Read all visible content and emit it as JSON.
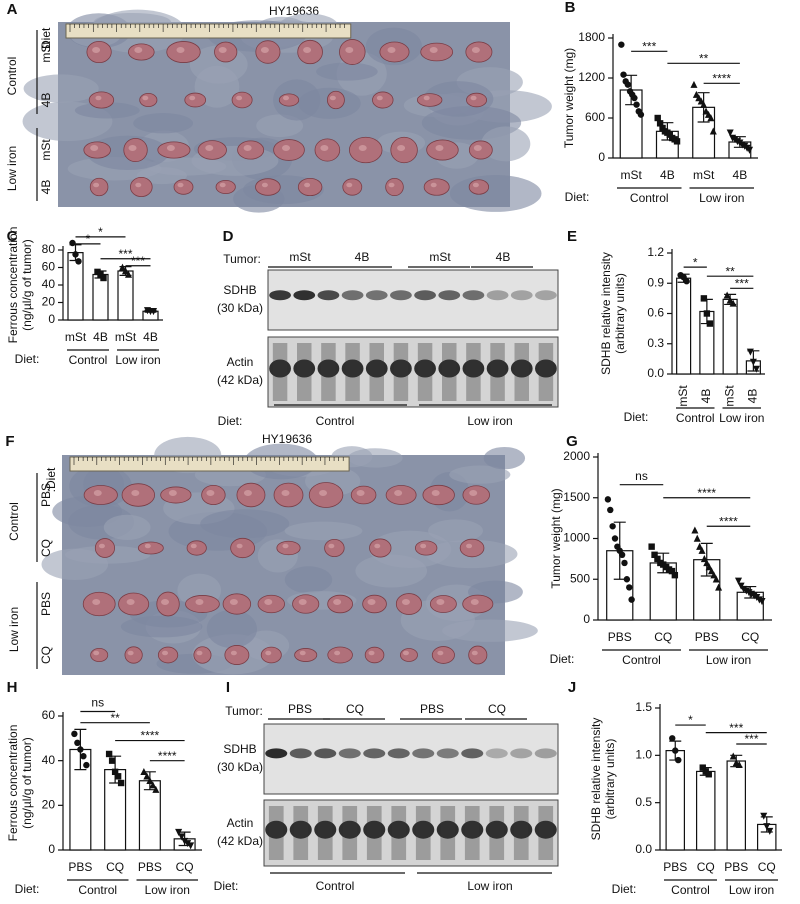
{
  "chart_data": [
    {
      "type": "bar",
      "panel": "B",
      "ylabel": [
        "Tumor weight (mg)"
      ],
      "categories": [
        "mSt",
        "4B",
        "mSt",
        "4B"
      ],
      "values": [
        1020,
        400,
        760,
        240
      ],
      "errors": [
        220,
        130,
        220,
        80
      ],
      "points": [
        [
          1700,
          1250,
          1150,
          1100,
          1000,
          950,
          900,
          800,
          700,
          650
        ],
        [
          600,
          520,
          450,
          400,
          380,
          350,
          300,
          280,
          250
        ],
        [
          1100,
          950,
          900,
          850,
          800,
          700,
          650,
          600,
          400
        ],
        [
          380,
          300,
          280,
          250,
          230,
          200,
          180,
          150,
          120
        ]
      ],
      "markers": [
        "circle",
        "square",
        "triangle",
        "triangle-down"
      ],
      "color": "#ffffff",
      "ylim": [
        0,
        1800
      ],
      "yticks": [
        0,
        600,
        1200,
        1800
      ],
      "rotate_labels": false,
      "diet_label": "Diet:",
      "groups": [
        "Control",
        "Low iron"
      ],
      "annotations": [
        {
          "label": "***",
          "from": 0,
          "to": 1,
          "y": 1600
        },
        {
          "label": "**",
          "from": 1,
          "to": 3,
          "y": 1420
        },
        {
          "label": "****",
          "from": 2,
          "to": 3,
          "y": 1120
        }
      ]
    },
    {
      "type": "bar",
      "panel": "C",
      "ylabel": [
        "Ferrous concentration",
        "(ng/µl/g of tumor)"
      ],
      "categories": [
        "mSt",
        "4B",
        "mSt",
        "4B"
      ],
      "values": [
        77,
        52,
        56,
        10
      ],
      "errors": [
        9,
        4,
        5,
        1
      ],
      "points": [
        [
          88,
          75,
          67
        ],
        [
          55,
          52,
          48
        ],
        [
          60,
          56,
          52
        ],
        [
          11,
          10,
          10
        ]
      ],
      "markers": [
        "circle",
        "square",
        "triangle",
        "triangle-down"
      ],
      "color": "#ffffff",
      "ylim": [
        0,
        80
      ],
      "yticks": [
        0,
        20,
        40,
        60,
        80
      ],
      "rotate_labels": false,
      "diet_label": "Diet:",
      "groups": [
        "Control",
        "Low iron"
      ],
      "annotations": [
        {
          "label": "*",
          "from": 0,
          "to": 2,
          "y": 95
        },
        {
          "label": "*",
          "from": 0,
          "to": 1,
          "y": 87
        },
        {
          "label": "***",
          "from": 1,
          "to": 3,
          "y": 70
        },
        {
          "label": "***",
          "from": 2,
          "to": 3,
          "y": 62
        }
      ]
    },
    {
      "type": "bar",
      "panel": "E",
      "ylabel": [
        "SDHB relative intensity",
        "(arbitrary units)"
      ],
      "categories": [
        "mSt",
        "4B",
        "mSt",
        "4B"
      ],
      "values": [
        0.95,
        0.62,
        0.74,
        0.13
      ],
      "errors": [
        0.04,
        0.12,
        0.05,
        0.1
      ],
      "points": [
        [
          0.98,
          0.96,
          0.92
        ],
        [
          0.75,
          0.6,
          0.5
        ],
        [
          0.78,
          0.73,
          0.7
        ],
        [
          0.22,
          0.12,
          0.05
        ]
      ],
      "markers": [
        "circle",
        "square",
        "triangle",
        "triangle-down"
      ],
      "color": "#ffffff",
      "ylim": [
        0,
        1.2
      ],
      "yticks": [
        {
          "value": 0,
          "label": "0.0"
        },
        0.3,
        0.6,
        0.9,
        1.2
      ],
      "rotate_labels": true,
      "diet_label": "Diet:",
      "groups": [
        "Control",
        "Low iron"
      ],
      "annotations": [
        {
          "label": "*",
          "from": 0,
          "to": 1,
          "y": 1.06
        },
        {
          "label": "**",
          "from": 1,
          "to": 3,
          "y": 0.97
        },
        {
          "label": "***",
          "from": 2,
          "to": 3,
          "y": 0.85
        }
      ]
    },
    {
      "type": "bar",
      "panel": "G",
      "ylabel": [
        "Tumor weight (mg)"
      ],
      "categories": [
        "PBS",
        "CQ",
        "PBS",
        "CQ"
      ],
      "values": [
        850,
        700,
        740,
        340
      ],
      "errors": [
        350,
        120,
        200,
        70
      ],
      "points": [
        [
          1480,
          1350,
          1150,
          1000,
          900,
          850,
          800,
          700,
          500,
          400,
          250
        ],
        [
          900,
          800,
          750,
          700,
          680,
          650,
          620,
          600,
          550
        ],
        [
          1100,
          1000,
          900,
          850,
          750,
          700,
          650,
          600,
          550,
          500,
          400
        ],
        [
          480,
          420,
          380,
          360,
          340,
          320,
          300,
          280,
          250,
          230
        ]
      ],
      "markers": [
        "circle",
        "square",
        "triangle",
        "triangle-down"
      ],
      "color": "#ffffff",
      "ylim": [
        0,
        2000
      ],
      "yticks": [
        0,
        500,
        1000,
        1500,
        2000
      ],
      "rotate_labels": false,
      "diet_label": "Diet:",
      "groups": [
        "Control",
        "Low iron"
      ],
      "annotations": [
        {
          "label": "ns",
          "from": 0,
          "to": 1,
          "y": 1660
        },
        {
          "label": "****",
          "from": 1,
          "to": 3,
          "y": 1500
        },
        {
          "label": "****",
          "from": 2,
          "to": 3,
          "y": 1150
        }
      ]
    },
    {
      "type": "bar",
      "panel": "H",
      "ylabel": [
        "Ferrous concentration",
        "(ng/µl/g of tumor)"
      ],
      "categories": [
        "PBS",
        "CQ",
        "PBS",
        "CQ"
      ],
      "values": [
        45,
        36,
        31,
        5
      ],
      "errors": [
        9,
        6,
        4,
        3
      ],
      "points": [
        [
          52,
          48,
          45,
          42,
          38
        ],
        [
          43,
          40,
          35,
          33,
          30
        ],
        [
          35,
          33,
          31,
          29,
          27
        ],
        [
          8,
          6,
          4,
          3,
          2
        ]
      ],
      "markers": [
        "circle",
        "square",
        "triangle",
        "triangle-down"
      ],
      "color": "#ffffff",
      "ylim": [
        0,
        60
      ],
      "yticks": [
        0,
        20,
        40,
        60
      ],
      "rotate_labels": false,
      "diet_label": "Diet:",
      "groups": [
        "Control",
        "Low iron"
      ],
      "annotations": [
        {
          "label": "ns",
          "from": 0,
          "to": 1,
          "y": 62
        },
        {
          "label": "**",
          "from": 0,
          "to": 2,
          "y": 57
        },
        {
          "label": "****",
          "from": 1,
          "to": 3,
          "y": 49
        },
        {
          "label": "****",
          "from": 2,
          "to": 3,
          "y": 40
        }
      ]
    },
    {
      "type": "bar",
      "panel": "J",
      "ylabel": [
        "SDHB relative intensity",
        "(arbitrary units)"
      ],
      "categories": [
        "PBS",
        "CQ",
        "PBS",
        "CQ"
      ],
      "values": [
        1.05,
        0.83,
        0.94,
        0.27
      ],
      "errors": [
        0.1,
        0.04,
        0.06,
        0.08
      ],
      "points": [
        [
          1.18,
          1.05,
          0.95
        ],
        [
          0.87,
          0.83,
          0.8
        ],
        [
          0.99,
          0.92,
          0.9
        ],
        [
          0.36,
          0.25,
          0.2
        ]
      ],
      "markers": [
        "circle",
        "square",
        "triangle",
        "triangle-down"
      ],
      "color": "#ffffff",
      "ylim": [
        0,
        1.5
      ],
      "yticks": [
        {
          "value": 0,
          "label": "0.0"
        },
        0.5,
        {
          "value": 1,
          "label": "1.0"
        },
        1.5
      ],
      "rotate_labels": false,
      "diet_label": "Diet:",
      "groups": [
        "Control",
        "Low iron"
      ],
      "annotations": [
        {
          "label": "*",
          "from": 0,
          "to": 1,
          "y": 1.32
        },
        {
          "label": "***",
          "from": 1,
          "to": 3,
          "y": 1.24
        },
        {
          "label": "***",
          "from": 2,
          "to": 3,
          "y": 1.12
        }
      ]
    }
  ],
  "photos": [
    {
      "panel": "A",
      "title": "HY19636",
      "diet_header": ":Diet",
      "groups": [
        {
          "name": "Control",
          "rows": [
            "mSt",
            "4B"
          ]
        },
        {
          "name": "Low iron",
          "rows": [
            "mSt",
            "4B"
          ]
        }
      ]
    },
    {
      "panel": "F",
      "title": "HY19636",
      "diet_header": ":Diet",
      "groups": [
        {
          "name": "Control",
          "rows": [
            "PBS",
            "CQ"
          ]
        },
        {
          "name": "Low iron",
          "rows": [
            "PBS",
            "CQ"
          ]
        }
      ]
    }
  ],
  "blots": [
    {
      "panel": "D",
      "tumor_label": "Tumor:",
      "lanes": [
        "mSt",
        "4B",
        "mSt",
        "4B"
      ],
      "proteins": [
        {
          "name": "SDHB",
          "weight": "(30 kDa)"
        },
        {
          "name": "Actin",
          "weight": "(42 kDa)"
        }
      ],
      "diet_label": "Diet:",
      "groups": [
        "Control",
        "Low iron"
      ]
    },
    {
      "panel": "I",
      "tumor_label": "Tumor:",
      "lanes": [
        "PBS",
        "CQ",
        "PBS",
        "CQ"
      ],
      "proteins": [
        {
          "name": "SDHB",
          "weight": "(30 kDa)"
        },
        {
          "name": "Actin",
          "weight": "(42 kDa)"
        }
      ],
      "diet_label": "Diet:",
      "groups": [
        "Control",
        "Low iron"
      ]
    }
  ]
}
